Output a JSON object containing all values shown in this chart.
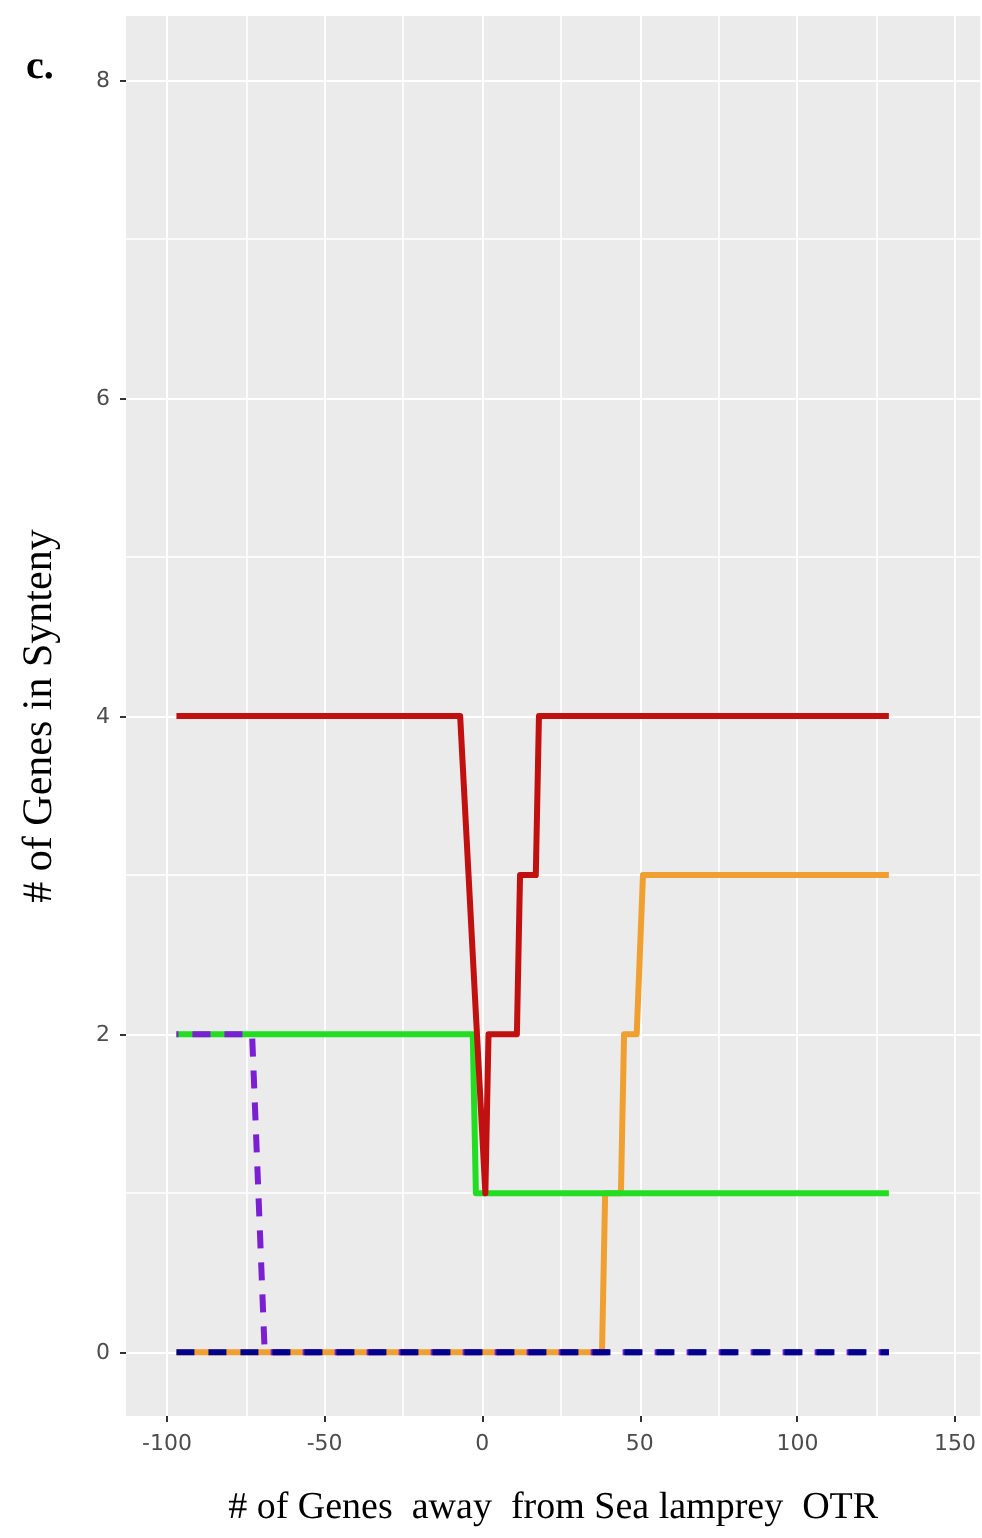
{
  "chart_data": {
    "type": "line",
    "title": "c.",
    "xlabel": "# of Genes  away  from Sea lamprey  OTR",
    "ylabel": "# of Genes in Synteny",
    "xlim": [
      -113,
      158
    ],
    "ylim": [
      -0.4,
      8.4
    ],
    "xticks": [
      -100,
      {
        "value": -75,
        "label": null
      },
      -50,
      {
        "value": -25,
        "label": null
      },
      0,
      {
        "value": 25,
        "label": null
      },
      50,
      {
        "value": 75,
        "label": null
      },
      100,
      {
        "value": 125,
        "label": null
      },
      150
    ],
    "yticks": [
      0,
      {
        "value": 1,
        "label": null
      },
      2,
      {
        "value": 3,
        "label": null
      },
      4,
      {
        "value": 5,
        "label": null
      },
      6,
      {
        "value": 7,
        "label": null
      },
      8
    ],
    "grid": true,
    "series": [
      {
        "color": "#f0a030",
        "line_style": "solid",
        "x": [
          -97,
          38,
          39,
          44,
          45,
          49,
          51,
          129
        ],
        "values": [
          0,
          0,
          1,
          1,
          2,
          2,
          3,
          3
        ]
      },
      {
        "color": "#22dd22",
        "line_style": "solid",
        "x": [
          -97,
          -3,
          -2,
          129
        ],
        "values": [
          2,
          2,
          1,
          1
        ]
      },
      {
        "color": "#c01010",
        "line_style": "solid",
        "x": [
          -97,
          -7,
          1,
          2,
          11,
          12,
          17,
          18,
          129
        ],
        "values": [
          4,
          4,
          1,
          2,
          2,
          3,
          3,
          4,
          4
        ]
      },
      {
        "color": "#7a1fd1",
        "line_style": "dashed",
        "x": [
          -97,
          -73,
          -69,
          129
        ],
        "values": [
          2,
          2,
          0,
          0
        ]
      },
      {
        "color": "#00008b",
        "line_style": "dashed",
        "x": [
          -97,
          129
        ],
        "values": [
          0,
          0
        ]
      }
    ]
  }
}
